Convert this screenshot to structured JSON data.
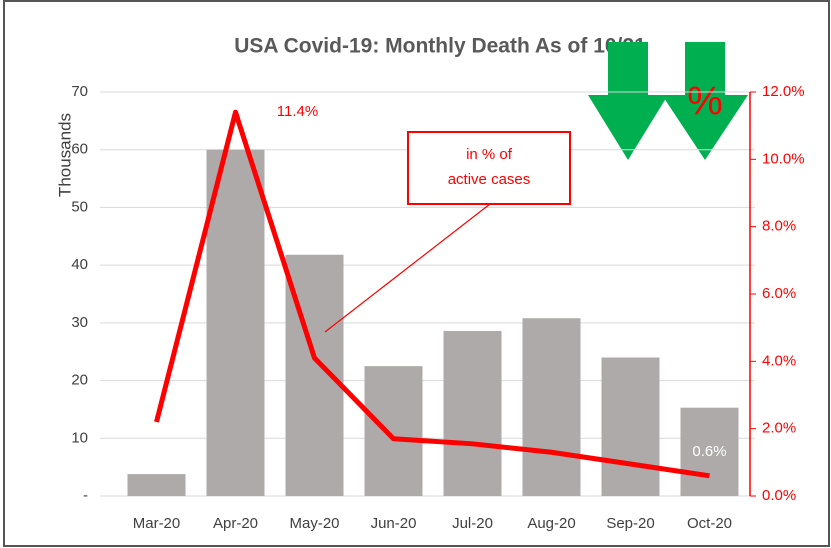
{
  "chart_data": {
    "type": "bar",
    "title": "USA Covid-19: Monthly Death As of 10/21",
    "ylabel": "Thousands",
    "categories": [
      "Mar-20",
      "Apr-20",
      "May-20",
      "Jun-20",
      "Jul-20",
      "Aug-20",
      "Sep-20",
      "Oct-20"
    ],
    "series": [
      {
        "name": "Deaths",
        "type": "bar",
        "color": "#aeaaaa",
        "values": [
          3.8,
          60,
          41.8,
          22.5,
          28.6,
          30.8,
          24,
          15.3
        ]
      },
      {
        "name": "in % of active cases",
        "type": "line",
        "axis": "y2",
        "color": "#ff0000",
        "values": [
          2.2,
          11.4,
          4.1,
          1.7,
          1.55,
          1.3,
          0.95,
          0.6
        ],
        "value_labels": [
          null,
          "11.4%",
          null,
          null,
          null,
          null,
          null,
          "0.6%"
        ]
      }
    ],
    "ylim": [
      0,
      70
    ],
    "yticks": [
      {
        "value": 0,
        "label": "-"
      },
      10,
      20,
      30,
      40,
      50,
      60,
      70
    ],
    "y2lim": [
      0,
      12
    ],
    "y2ticks": [
      {
        "value": 0,
        "label": "0.0%"
      },
      {
        "value": 2,
        "label": "2.0%"
      },
      {
        "value": 4,
        "label": "4.0%"
      },
      {
        "value": 6,
        "label": "6.0%"
      },
      {
        "value": 8,
        "label": "8.0%"
      },
      {
        "value": 10,
        "label": "10.0%"
      },
      {
        "value": 12,
        "label": "12.0%"
      }
    ],
    "grid": true,
    "annotation": [
      "in % of",
      "active cases"
    ],
    "icon_text": "%"
  }
}
